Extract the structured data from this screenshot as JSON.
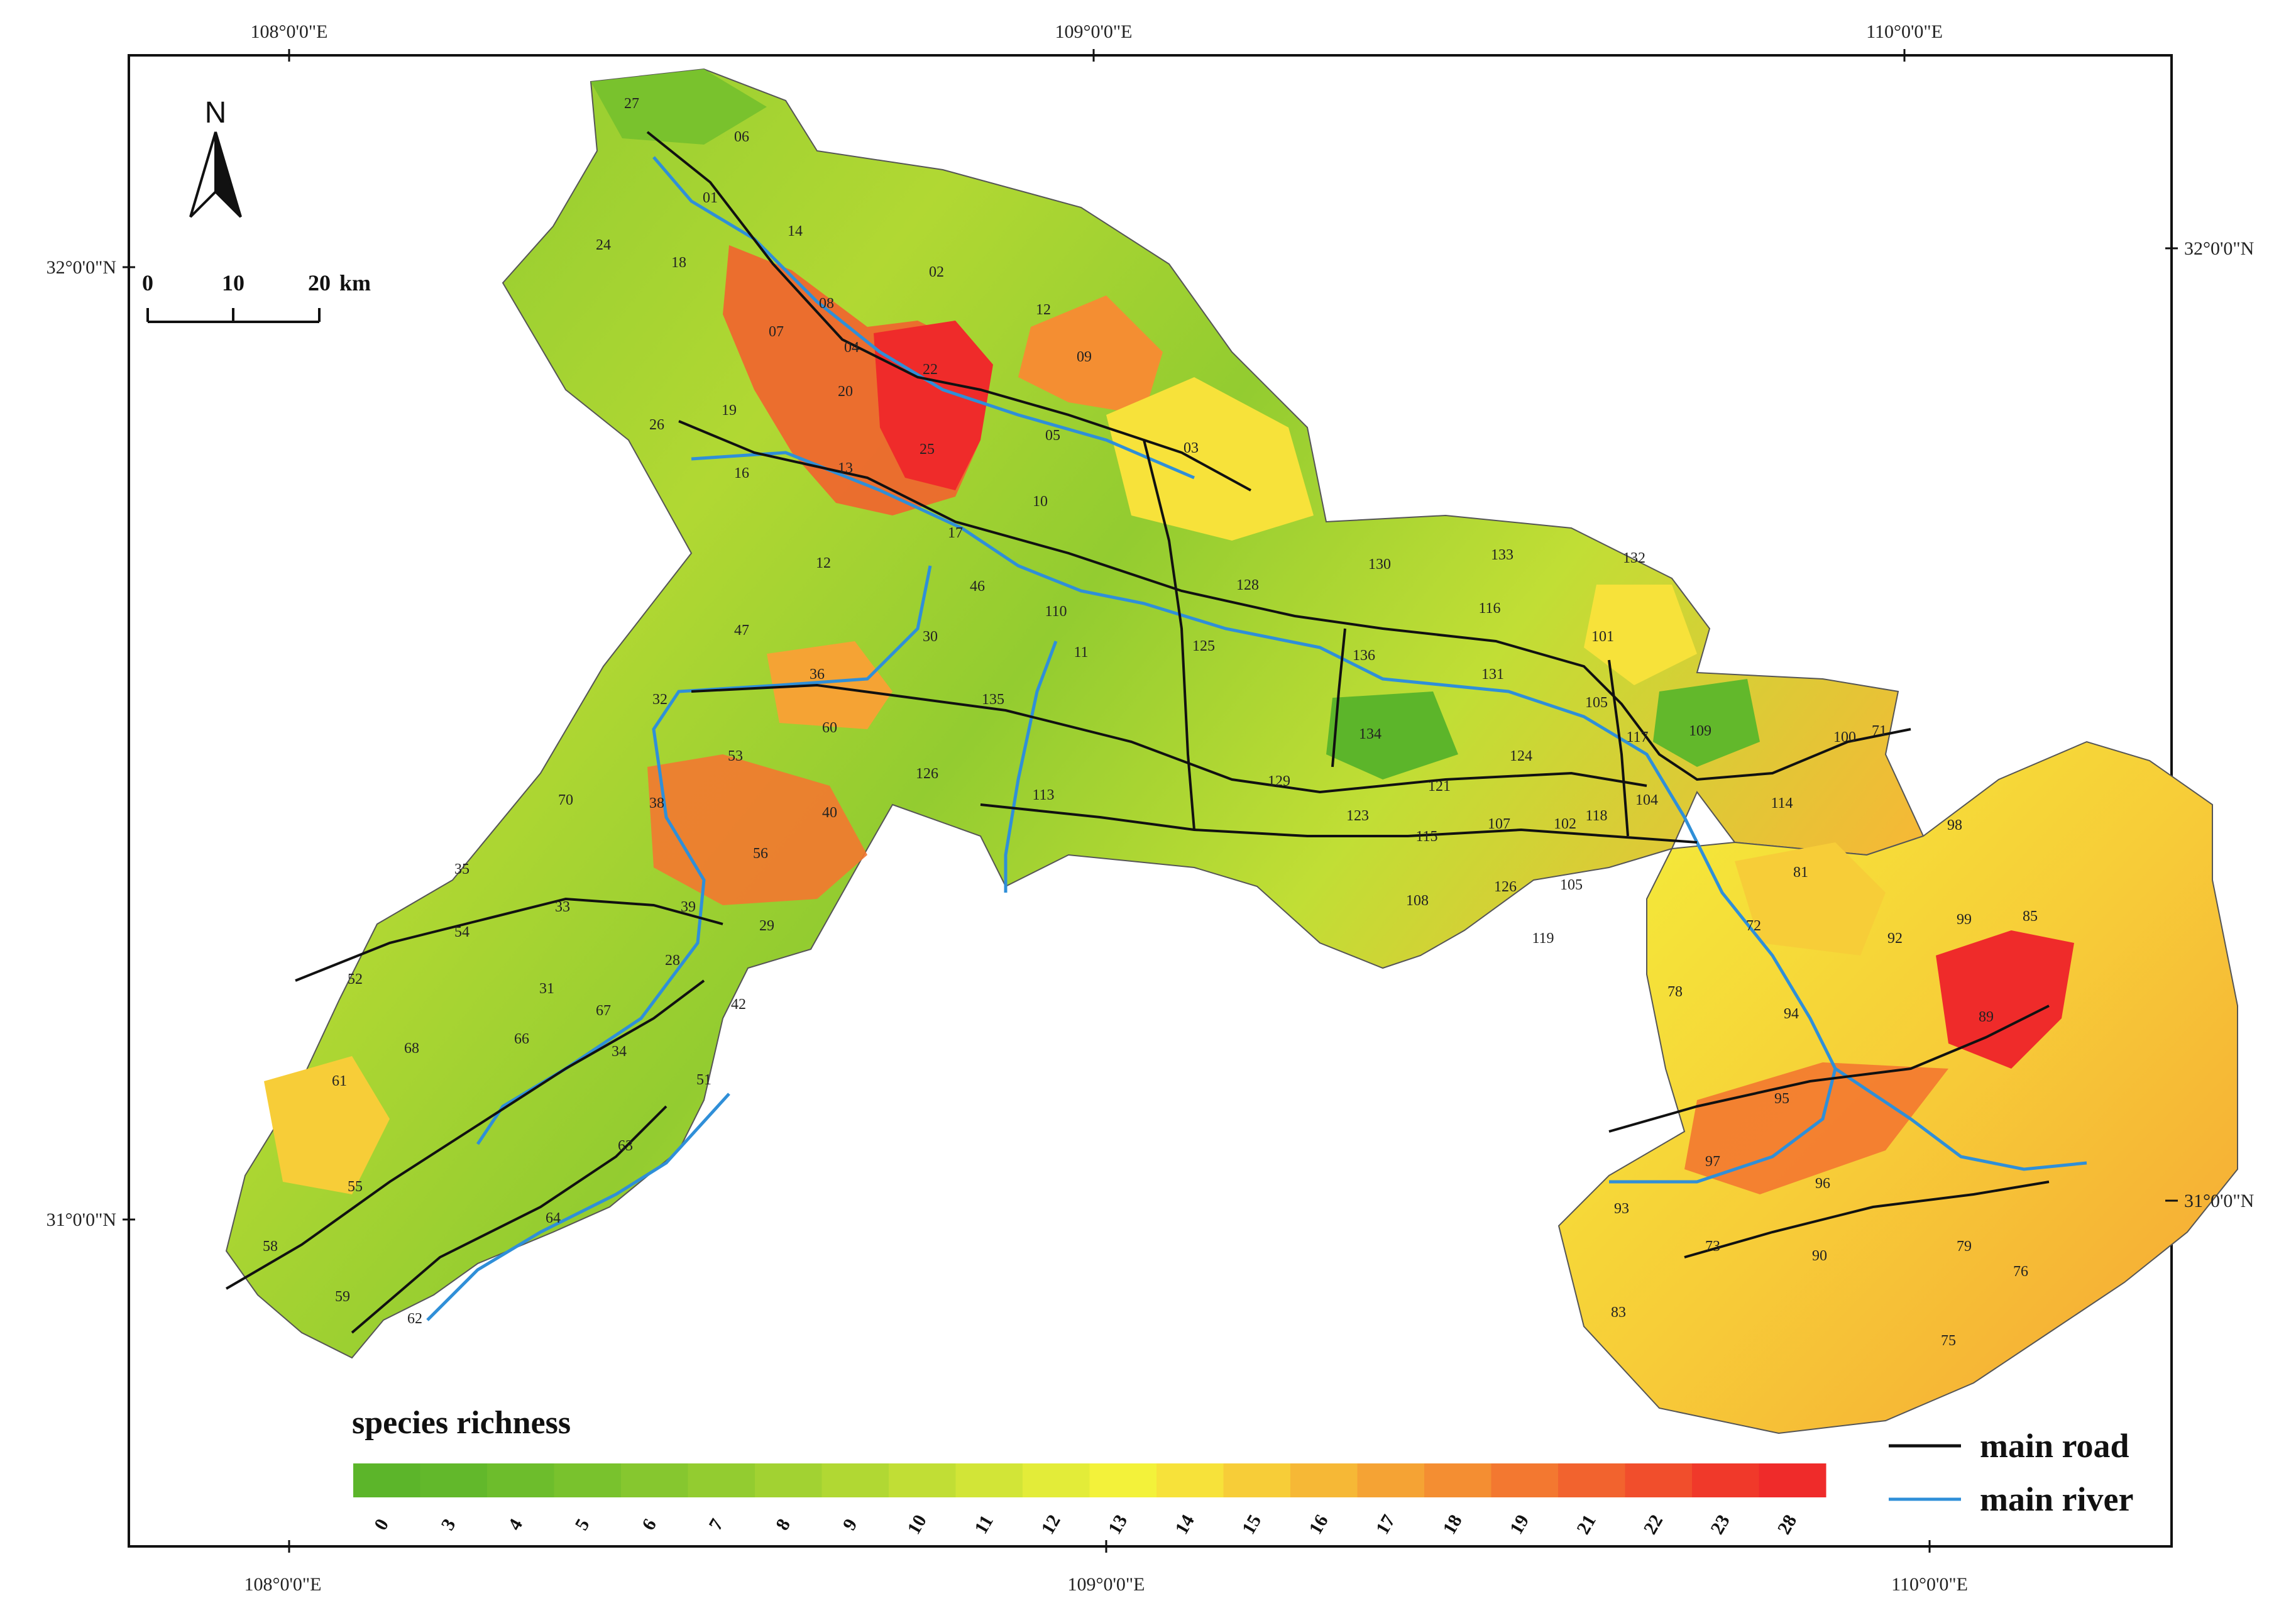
{
  "map": {
    "longitude_labels": [
      "108°0'0\"E",
      "109°0'0\"E",
      "110°0'0\"E"
    ],
    "latitude_labels": [
      "32°0'0\"N",
      "31°0'0\"N"
    ],
    "north_label": "N",
    "scale_bar": {
      "ticks": [
        "0",
        "10",
        "20"
      ],
      "unit": "km"
    },
    "unit_numbers": [
      "27",
      "06",
      "01",
      "14",
      "02",
      "24",
      "18",
      "08",
      "12",
      "09",
      "07",
      "04",
      "22",
      "03",
      "05",
      "19",
      "20",
      "26",
      "25",
      "13",
      "16",
      "10",
      "17",
      "46",
      "110",
      "12",
      "36",
      "32",
      "30",
      "11",
      "135",
      "47",
      "60",
      "126",
      "113",
      "53",
      "40",
      "38",
      "70",
      "56",
      "35",
      "54",
      "33",
      "39",
      "29",
      "52",
      "28",
      "31",
      "67",
      "42",
      "68",
      "66",
      "51",
      "61",
      "34",
      "63",
      "55",
      "64",
      "58",
      "62",
      "59",
      "130",
      "133",
      "132",
      "116",
      "128",
      "125",
      "136",
      "131",
      "101",
      "105",
      "117",
      "109",
      "134",
      "124",
      "121",
      "129",
      "123",
      "115",
      "107",
      "102",
      "118",
      "104",
      "114",
      "100",
      "98",
      "108",
      "126",
      "105",
      "119",
      "81",
      "72",
      "99",
      "85",
      "92",
      "89",
      "78",
      "94",
      "95",
      "97",
      "93",
      "73",
      "96",
      "83",
      "90",
      "79",
      "76",
      "75",
      "71"
    ],
    "colorbar": {
      "title": "species richness",
      "labels": [
        "0",
        "3",
        "4",
        "5",
        "6",
        "7",
        "8",
        "9",
        "10",
        "11",
        "12",
        "13",
        "14",
        "15",
        "16",
        "17",
        "18",
        "19",
        "21",
        "22",
        "23",
        "28"
      ],
      "colors": [
        "#5cb52a",
        "#62b82b",
        "#6dbd2c",
        "#79c22d",
        "#86c72f",
        "#93cc30",
        "#a2d232",
        "#b1d833",
        "#c1de35",
        "#d2e537",
        "#e3ec39",
        "#f3f23a",
        "#f7e23a",
        "#f7cd38",
        "#f6b836",
        "#f5a334",
        "#f48e32",
        "#f37830",
        "#f2632e",
        "#f14e2c",
        "#f0392a",
        "#ef2b2a"
      ]
    },
    "legend": [
      {
        "label": "main road",
        "color": "#111111"
      },
      {
        "label": "main river",
        "color": "#2f8fd8"
      }
    ]
  }
}
